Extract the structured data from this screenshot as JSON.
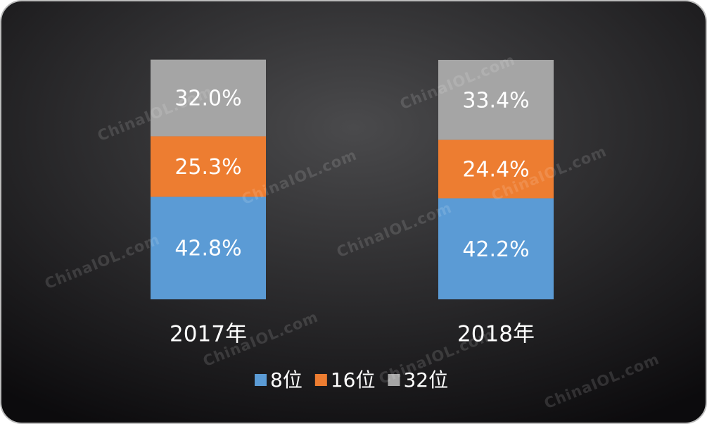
{
  "chart_data": {
    "type": "stacked_bar",
    "categories": [
      "2017年",
      "2018年"
    ],
    "series": [
      {
        "name": "8位",
        "color": "#5b9bd5",
        "values": [
          42.8,
          42.2
        ],
        "value_labels": [
          "42.8%",
          "42.2%"
        ]
      },
      {
        "name": "16位",
        "color": "#ed7d31",
        "values": [
          25.3,
          24.4
        ],
        "value_labels": [
          "25.3%",
          "24.4%"
        ]
      },
      {
        "name": "32位",
        "color": "#a5a5a5",
        "values": [
          32.0,
          33.4
        ],
        "value_labels": [
          "32.0%",
          "33.4%"
        ]
      }
    ],
    "legend": "bottom",
    "watermark": "ChinaIOL.com"
  }
}
